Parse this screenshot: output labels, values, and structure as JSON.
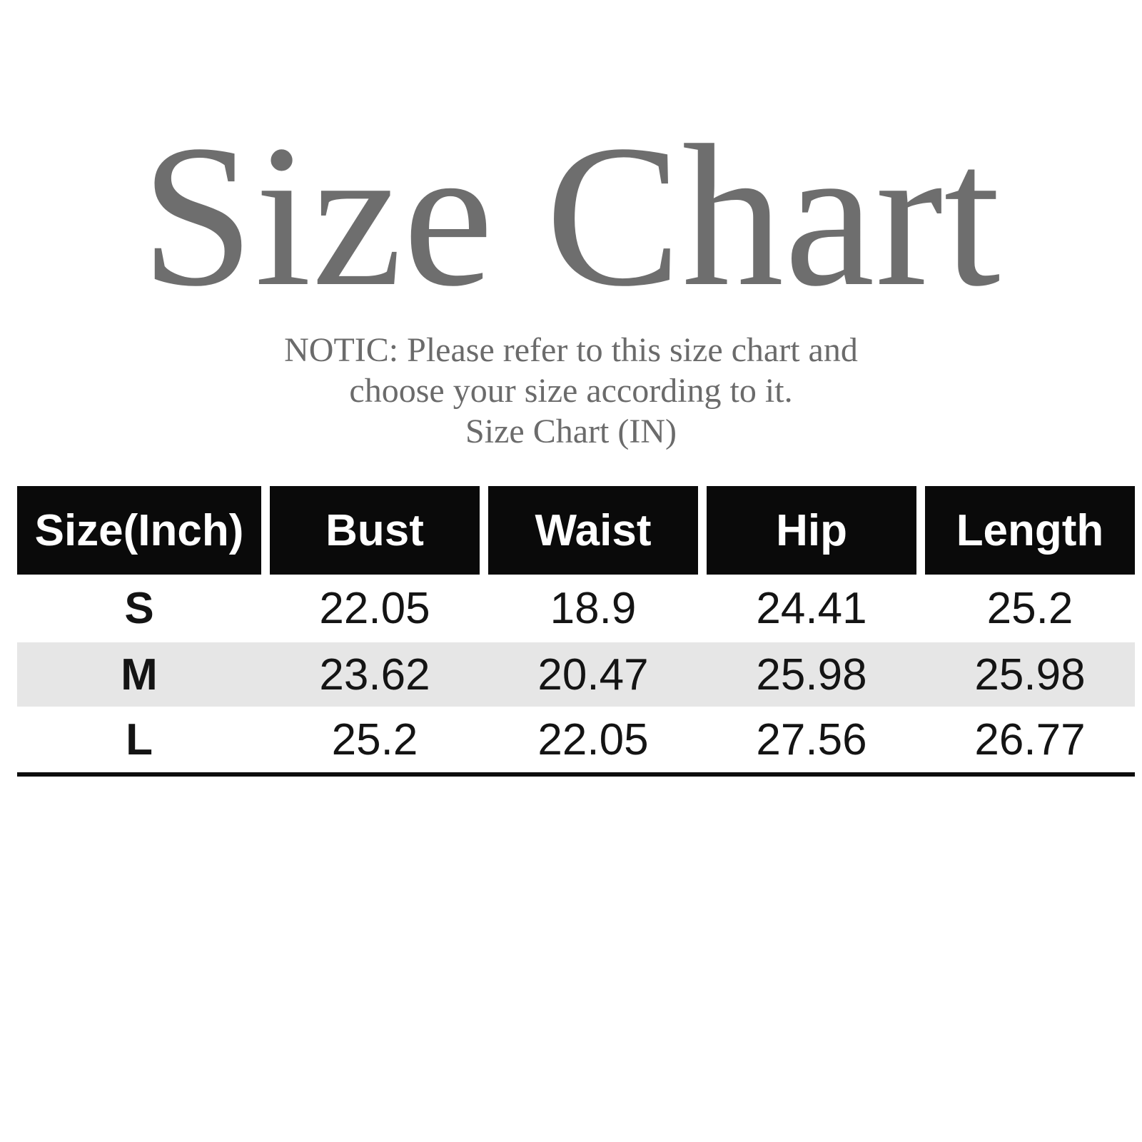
{
  "title": {
    "text": "Size Chart"
  },
  "notice": {
    "lines": [
      "NOTIC: Please refer to this size chart and",
      "choose your size according to it.",
      "Size Chart (IN)"
    ]
  },
  "chart_data": {
    "type": "table",
    "title": "Size Chart",
    "subtitle": "Size Chart (IN)",
    "unit": "inches",
    "columns": [
      "Size(Inch)",
      "Bust",
      "Waist",
      "Hip",
      "Length"
    ],
    "rows": [
      [
        "S",
        "22.05",
        "18.9",
        "24.41",
        "25.2"
      ],
      [
        "M",
        "23.62",
        "20.47",
        "25.98",
        "25.98"
      ],
      [
        "L",
        "25.2",
        "22.05",
        "27.56",
        "26.77"
      ]
    ],
    "layout": {
      "header_style": "black cells with white bold text, white gaps between columns",
      "striped_row": "M",
      "stripe_color": "#e6e6e6",
      "bottom_rule": true
    }
  },
  "colors": {
    "background": "#ffffff",
    "title_text": "#6e6e6e",
    "notice_text": "#6b6b6b",
    "header_bg": "#0a0a0a",
    "header_text": "#ffffff",
    "row_stripe": "#e6e6e6",
    "body_text": "#141414",
    "rule": "#0d0d0d"
  }
}
